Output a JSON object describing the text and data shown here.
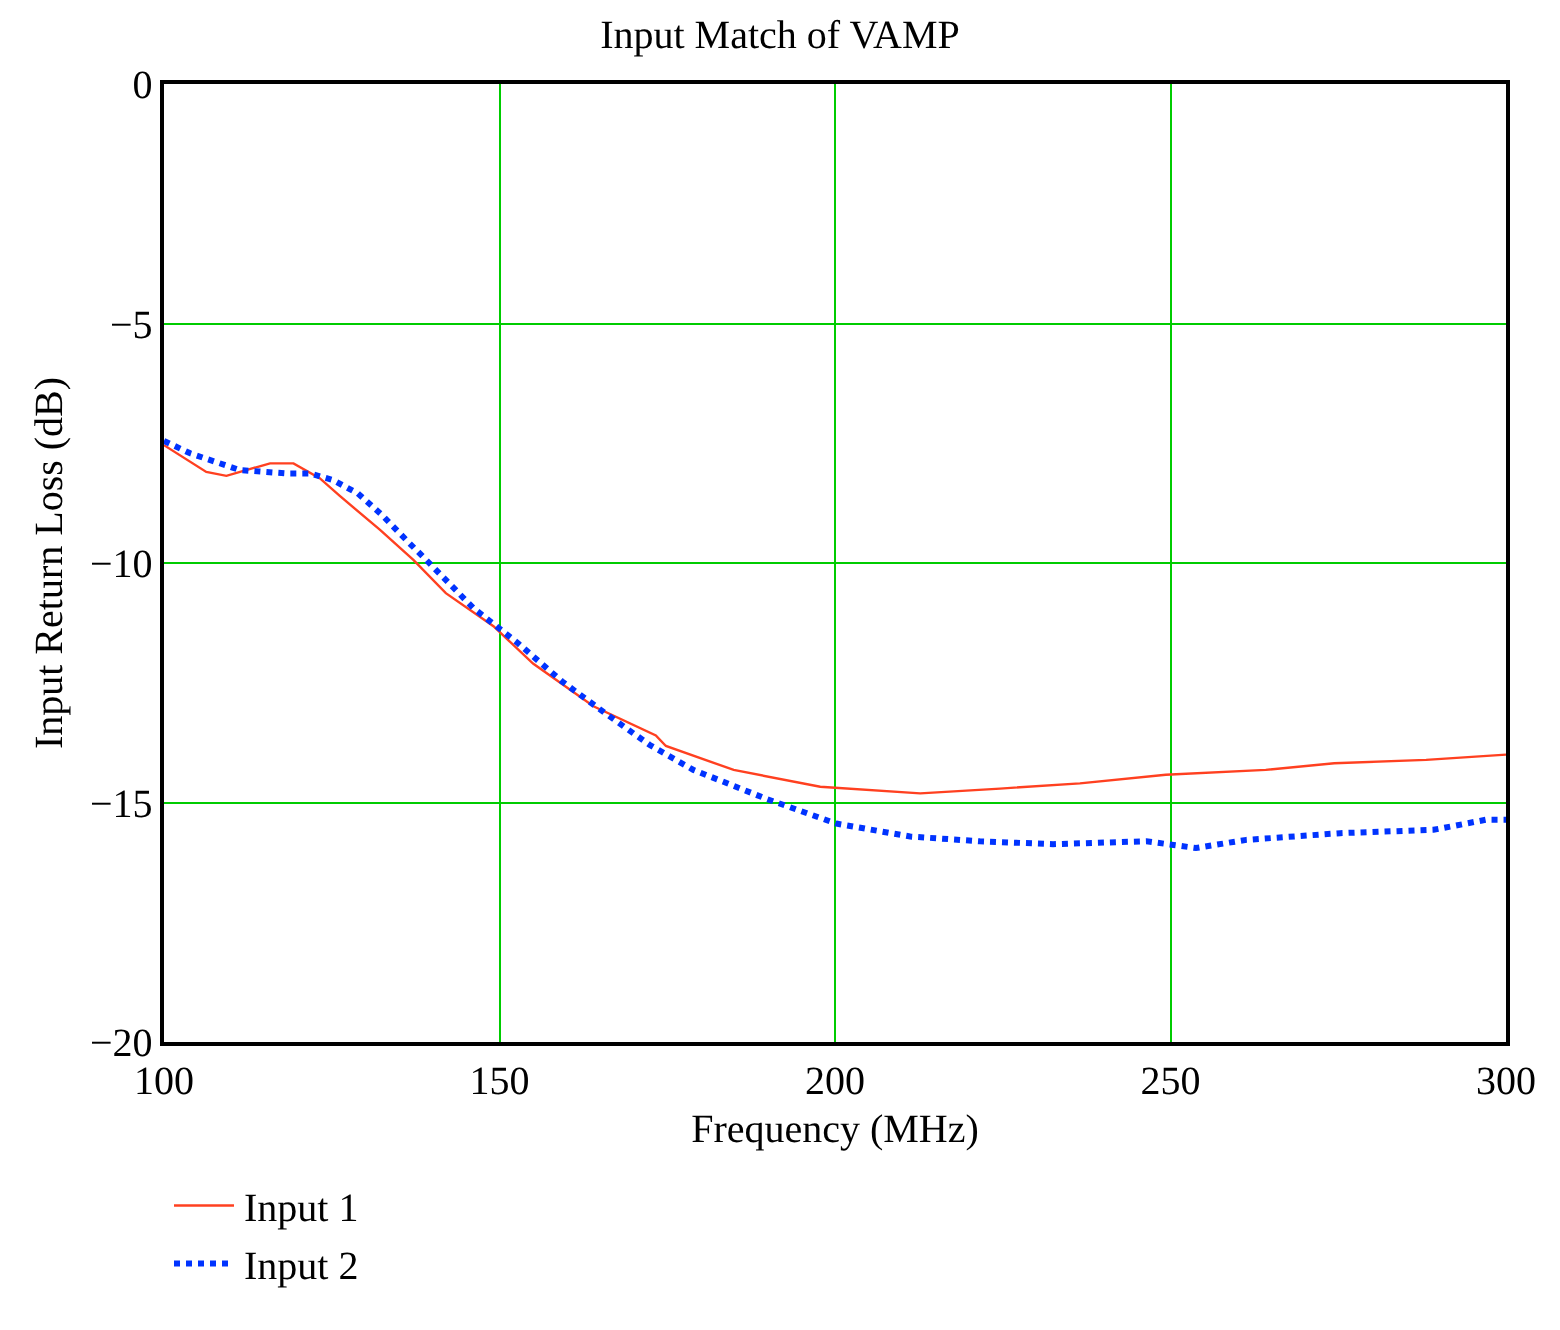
{
  "chart_data": {
    "type": "line",
    "title": "Input Match of VAMP",
    "xlabel": "Frequency (MHz)",
    "ylabel": "Input Return Loss (dB)",
    "xlim": [
      100,
      300
    ],
    "xticks": [
      100,
      150,
      200,
      250,
      300
    ],
    "ylim": [
      -20,
      0
    ],
    "yticks": [
      {
        "value": -20,
        "label": "−20"
      },
      {
        "value": -15,
        "label": "−15"
      },
      {
        "value": -10,
        "label": "−10"
      },
      {
        "value": -5,
        "label": "−5"
      },
      0
    ],
    "grid": true,
    "legend": "bottom left",
    "series": [
      {
        "name": "Input 1",
        "color": "#ff4020",
        "line_style": "solid",
        "x": [
          100,
          106.3,
          109.3,
          115.8,
          119.3,
          123.2,
          126.2,
          132.2,
          137.2,
          142,
          149.1,
          155,
          164,
          173.3,
          174.8,
          184.9,
          197.8,
          212.7,
          224.6,
          236.5,
          249.3,
          264.2,
          274.4,
          288.1,
          300
        ],
        "values": [
          -7.54,
          -8.1,
          -8.18,
          -7.92,
          -7.92,
          -8.23,
          -8.6,
          -9.31,
          -9.94,
          -10.63,
          -11.32,
          -12.1,
          -12.99,
          -13.6,
          -13.82,
          -14.32,
          -14.67,
          -14.81,
          -14.71,
          -14.6,
          -14.42,
          -14.32,
          -14.18,
          -14.11,
          -14.0
        ]
      },
      {
        "name": "Input 2",
        "color": "#0033ff",
        "line_style": "dotted",
        "x": [
          100,
          103.9,
          111.3,
          118.2,
          121.8,
          125.2,
          128.9,
          132.5,
          136.1,
          139.1,
          146.1,
          152.8,
          159.3,
          165.9,
          172.4,
          178.9,
          189.7,
          200.2,
          211.2,
          221.6,
          232.5,
          246.4,
          253.8,
          261.3,
          275.3,
          289.2,
          297,
          300
        ],
        "values": [
          -7.45,
          -7.71,
          -8.06,
          -8.13,
          -8.13,
          -8.27,
          -8.55,
          -9.0,
          -9.52,
          -9.94,
          -10.94,
          -11.68,
          -12.47,
          -13.15,
          -13.8,
          -14.32,
          -14.92,
          -15.44,
          -15.71,
          -15.81,
          -15.87,
          -15.81,
          -15.95,
          -15.78,
          -15.64,
          -15.57,
          -15.36,
          -15.36
        ]
      }
    ]
  }
}
